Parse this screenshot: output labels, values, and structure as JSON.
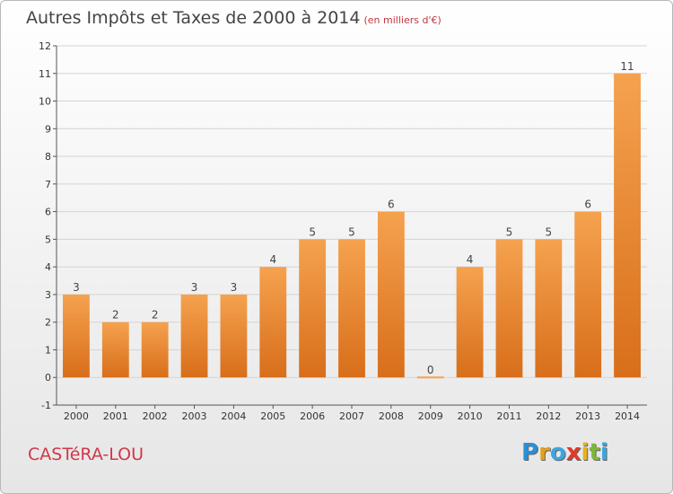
{
  "title": "Autres Impôts et Taxes de 2000 à 2014",
  "subtitle": "(en milliers d'€)",
  "place_name": "CASTéRA-LOU",
  "logo": {
    "letters": [
      "P",
      "r",
      "o",
      "x",
      "i",
      "t",
      "i"
    ],
    "colors": [
      "#2a8fd6",
      "#e0a020",
      "#3aa6e0",
      "#e03a2a",
      "#e6b020",
      "#7cb838",
      "#3aa6e0"
    ]
  },
  "colors": {
    "bar_light": "#f5a24f",
    "bar_dark": "#d86e1a",
    "grid": "#d4d4d4"
  },
  "chart_data": {
    "type": "bar",
    "categories": [
      "2000",
      "2001",
      "2002",
      "2003",
      "2004",
      "2005",
      "2006",
      "2007",
      "2008",
      "2009",
      "2010",
      "2011",
      "2012",
      "2013",
      "2014"
    ],
    "values": [
      3,
      2,
      2,
      3,
      3,
      4,
      5,
      5,
      6,
      0,
      4,
      5,
      5,
      6,
      11
    ],
    "data_labels": [
      "3",
      "2",
      "2",
      "3",
      "3",
      "4",
      "5",
      "5",
      "6",
      "0",
      "4",
      "5",
      "5",
      "6",
      "11"
    ],
    "ylim": [
      -1,
      12
    ],
    "yticks": [
      -1,
      0,
      1,
      2,
      3,
      4,
      5,
      6,
      7,
      8,
      9,
      10,
      11,
      12
    ],
    "ytick_labels": [
      "-1",
      "0",
      "1",
      "2",
      "3",
      "4",
      "5",
      "6",
      "7",
      "8",
      "9",
      "10",
      "11",
      "12"
    ],
    "grid": true,
    "xlabel": "",
    "ylabel": ""
  }
}
